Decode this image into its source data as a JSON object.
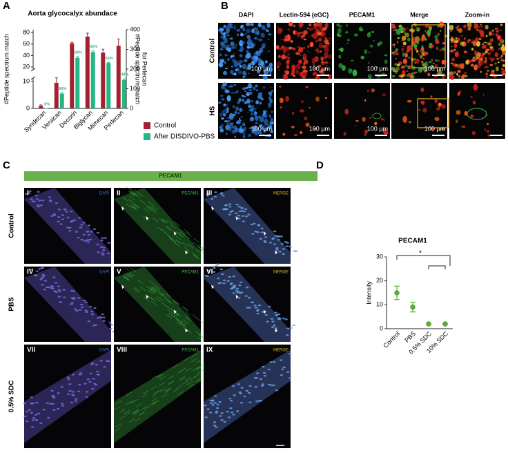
{
  "panel_labels": [
    "A",
    "B",
    "C",
    "D"
  ],
  "chart_data": [
    {
      "type": "bar",
      "title": "Aorta glycocalyx abundace",
      "y_label": "#Peptide spectrum match",
      "y2_label_lines": [
        "#Peptide spectrum match",
        "for Perlecan"
      ],
      "categories": [
        "Syndecan",
        "Versican",
        "Decorin",
        "Biglycan",
        "Mimecan",
        "Perlecan"
      ],
      "category_axis": [
        "y",
        "y",
        "y",
        "y",
        "y",
        "y2"
      ],
      "series": [
        {
          "name": "Control",
          "color": "#a3202f",
          "values": [
            1,
            9.5,
            61,
            73,
            45,
            318
          ],
          "errors": [
            0.3,
            3,
            2,
            6,
            6,
            35
          ]
        },
        {
          "name": "After DISDIVO-PBS",
          "color": "#22b885",
          "values": [
            0,
            5.5,
            36,
            46,
            27,
            145
          ],
          "errors": [
            0,
            0.3,
            2,
            2,
            1,
            5
          ],
          "annotations": [
            "0%",
            "60%",
            "58%",
            "62%",
            "60%",
            "44%"
          ]
        }
      ],
      "ylim": [
        0,
        85
      ],
      "ybreak": [
        10,
        20
      ],
      "yticks": [
        0,
        10,
        20,
        40,
        60,
        80
      ],
      "y2lim": [
        0,
        400
      ],
      "y2ticks": [
        0,
        100,
        200,
        300,
        400
      ],
      "legend": "lower right"
    },
    {
      "type": "dot",
      "title": "PECAM1",
      "y_label": "Intensity",
      "categories": [
        "Control",
        "PBS",
        "0.5% SDC",
        "10% SDC"
      ],
      "values": [
        15,
        9,
        2,
        2
      ],
      "errors": [
        2.8,
        2,
        0,
        0
      ],
      "color": "#5aab3c",
      "ylim": [
        0,
        30
      ],
      "yticks": [
        0,
        10,
        20,
        30
      ],
      "significance": "*"
    }
  ],
  "panel_b": {
    "columns": [
      "DAPI",
      "Lectin-594 (eGC)",
      "PECAM1",
      "Merge",
      "Zoom-in"
    ],
    "rows": [
      "Control",
      "HS"
    ],
    "scale_bar": "100 µm"
  },
  "panel_c": {
    "header": "PECAM1",
    "rows": [
      "Control",
      "PBS",
      "0.5% SDC"
    ],
    "numerals": [
      "I",
      "II",
      "III",
      "IV",
      "V",
      "VI",
      "VII",
      "VIII",
      "IX"
    ],
    "channels": [
      "DAPI",
      "PECAM1",
      "MERGE"
    ]
  }
}
